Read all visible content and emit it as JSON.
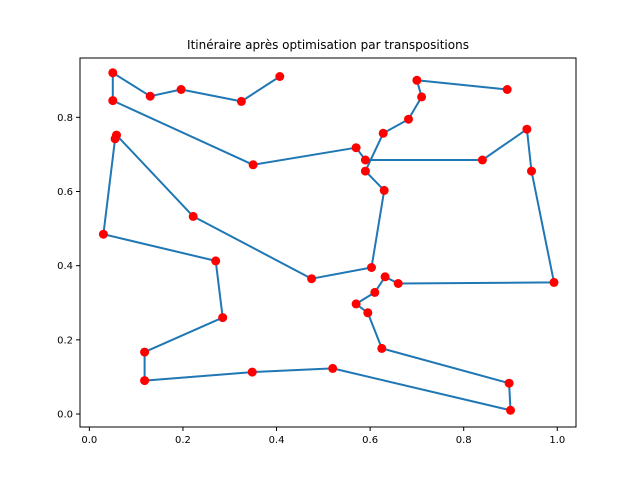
{
  "chart_data": {
    "type": "line",
    "title": "Itinéraire après optimisation par transpositions",
    "xlabel": "",
    "ylabel": "",
    "xlim": [
      -0.02,
      1.04
    ],
    "ylim": [
      -0.035,
      0.96
    ],
    "xticks": [
      0.0,
      0.2,
      0.4,
      0.6,
      0.8,
      1.0
    ],
    "xtick_labels": [
      "0.0",
      "0.2",
      "0.4",
      "0.6",
      "0.8",
      "1.0"
    ],
    "yticks": [
      0.0,
      0.2,
      0.4,
      0.6,
      0.8
    ],
    "ytick_labels": [
      "0.0",
      "0.2",
      "0.4",
      "0.6",
      "0.8"
    ],
    "grid": false,
    "line_color": "#1f77b4",
    "marker_color": "#ff0000",
    "series": [
      {
        "x": [
          0.407,
          0.325,
          0.196,
          0.13,
          0.05,
          0.05,
          0.35,
          0.57,
          0.59,
          0.84,
          0.935,
          0.945,
          0.993,
          0.66,
          0.632,
          0.61,
          0.57,
          0.595,
          0.625,
          0.897,
          0.9,
          0.52,
          0.348,
          0.118,
          0.118,
          0.285,
          0.27,
          0.03,
          0.055,
          0.058,
          0.222,
          0.475,
          0.603,
          0.63,
          0.59,
          0.628,
          0.682,
          0.71,
          0.7,
          0.893
        ],
        "y": [
          0.91,
          0.843,
          0.875,
          0.857,
          0.92,
          0.845,
          0.672,
          0.718,
          0.685,
          0.685,
          0.768,
          0.655,
          0.355,
          0.352,
          0.37,
          0.328,
          0.297,
          0.273,
          0.177,
          0.083,
          0.01,
          0.123,
          0.113,
          0.09,
          0.167,
          0.26,
          0.413,
          0.485,
          0.742,
          0.752,
          0.533,
          0.365,
          0.395,
          0.603,
          0.655,
          0.757,
          0.795,
          0.855,
          0.9,
          0.875
        ]
      }
    ]
  }
}
